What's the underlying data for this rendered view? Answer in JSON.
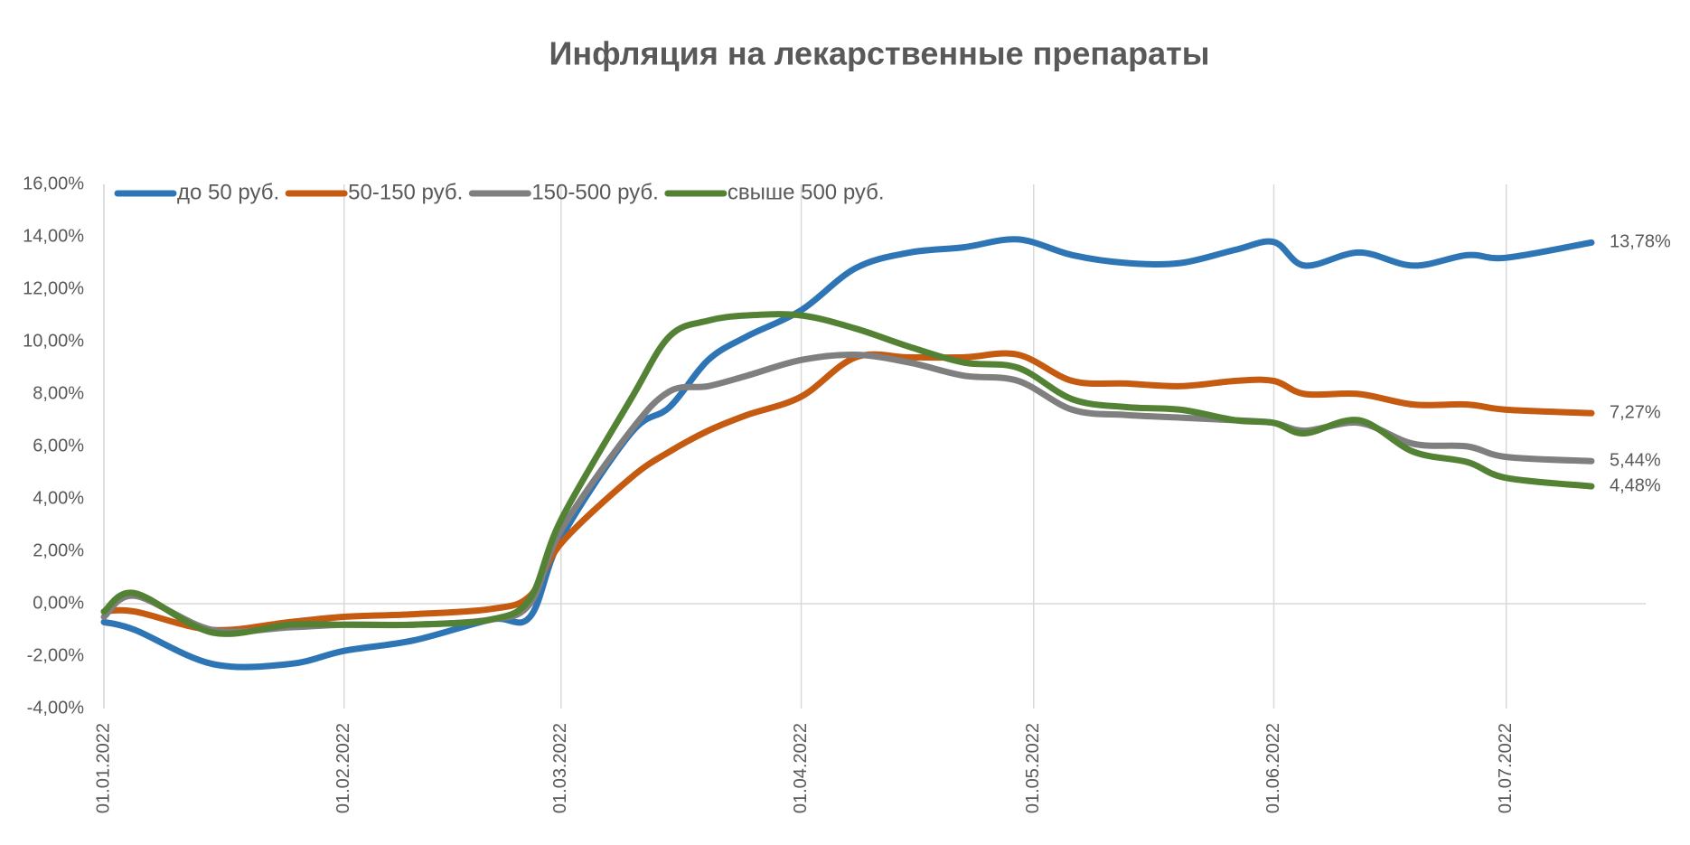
{
  "chart_data": {
    "type": "line",
    "title": "Инфляция на лекарственные препараты",
    "x": [
      "01.01.2022",
      "05.01.2022",
      "15.01.2022",
      "25.01.2022",
      "01.02.2022",
      "10.02.2022",
      "20.02.2022",
      "25.02.2022",
      "01.03.2022",
      "10.03.2022",
      "15.03.2022",
      "20.03.2022",
      "25.03.2022",
      "01.04.2022",
      "08.04.2022",
      "15.04.2022",
      "22.04.2022",
      "29.04.2022",
      "06.05.2022",
      "13.05.2022",
      "20.05.2022",
      "27.05.2022",
      "01.06.2022",
      "05.06.2022",
      "12.06.2022",
      "19.06.2022",
      "26.06.2022",
      "01.07.2022",
      "12.07.2022"
    ],
    "series": [
      {
        "name": "до 50 руб.",
        "color": "#2e75b6",
        "values": [
          -0.7,
          -1.0,
          -2.3,
          -2.3,
          -1.8,
          -1.4,
          -0.6,
          -0.5,
          2.5,
          6.5,
          7.5,
          9.3,
          10.2,
          11.2,
          12.8,
          13.4,
          13.6,
          13.9,
          13.3,
          13.0,
          13.0,
          13.5,
          13.8,
          12.9,
          13.4,
          12.9,
          13.3,
          13.2,
          13.78
        ],
        "value_labels": [
          null,
          null,
          null,
          null,
          null,
          null,
          null,
          null,
          null,
          null,
          null,
          null,
          null,
          null,
          null,
          null,
          null,
          null,
          null,
          null,
          null,
          null,
          null,
          null,
          null,
          null,
          null,
          null,
          "13,78%"
        ]
      },
      {
        "name": "50-150 руб.",
        "color": "#c55a11",
        "values": [
          -0.3,
          -0.3,
          -1.0,
          -0.7,
          -0.5,
          -0.4,
          -0.2,
          0.3,
          2.3,
          4.8,
          5.8,
          6.6,
          7.2,
          7.9,
          9.4,
          9.4,
          9.4,
          9.5,
          8.5,
          8.4,
          8.3,
          8.5,
          8.5,
          8.0,
          8.0,
          7.6,
          7.6,
          7.4,
          7.27
        ],
        "value_labels": [
          null,
          null,
          null,
          null,
          null,
          null,
          null,
          null,
          null,
          null,
          null,
          null,
          null,
          null,
          null,
          null,
          null,
          null,
          null,
          null,
          null,
          null,
          null,
          null,
          null,
          null,
          null,
          null,
          "7,27%"
        ]
      },
      {
        "name": "150-500 руб.",
        "color": "#7f7f7f",
        "values": [
          -0.5,
          0.3,
          -1.0,
          -0.9,
          -0.8,
          -0.8,
          -0.6,
          0.0,
          2.8,
          6.6,
          8.1,
          8.3,
          8.7,
          9.3,
          9.5,
          9.2,
          8.7,
          8.5,
          7.4,
          7.2,
          7.1,
          7.0,
          6.9,
          6.6,
          6.9,
          6.1,
          6.0,
          5.6,
          5.44
        ],
        "value_labels": [
          null,
          null,
          null,
          null,
          null,
          null,
          null,
          null,
          null,
          null,
          null,
          null,
          null,
          null,
          null,
          null,
          null,
          null,
          null,
          null,
          null,
          null,
          null,
          null,
          null,
          null,
          null,
          null,
          "5,44%"
        ]
      },
      {
        "name": "свыше 500 руб.",
        "color": "#548235",
        "values": [
          -0.3,
          0.4,
          -1.1,
          -0.8,
          -0.8,
          -0.8,
          -0.6,
          0.2,
          3.2,
          7.8,
          10.2,
          10.8,
          11.0,
          11.0,
          10.5,
          9.8,
          9.2,
          9.0,
          7.8,
          7.5,
          7.4,
          7.0,
          6.9,
          6.5,
          7.0,
          5.8,
          5.4,
          4.8,
          4.48
        ],
        "value_labels": [
          null,
          null,
          null,
          null,
          null,
          null,
          null,
          null,
          null,
          null,
          null,
          null,
          null,
          null,
          null,
          null,
          null,
          null,
          null,
          null,
          null,
          null,
          null,
          null,
          null,
          null,
          null,
          null,
          "4,48%"
        ]
      }
    ],
    "xlim": [
      "01.01.2022",
      "19.07.2022"
    ],
    "xticks": [
      "01.01.2022",
      "01.02.2022",
      "01.03.2022",
      "01.04.2022",
      "01.05.2022",
      "01.06.2022",
      "01.07.2022"
    ],
    "ylim": [
      -4,
      16
    ],
    "yticks": [
      {
        "value": -4,
        "label": "-4,00%"
      },
      {
        "value": -2,
        "label": "-2,00%"
      },
      {
        "value": 0,
        "label": "0,00%"
      },
      {
        "value": 2,
        "label": "2,00%"
      },
      {
        "value": 4,
        "label": "4,00%"
      },
      {
        "value": 6,
        "label": "6,00%"
      },
      {
        "value": 8,
        "label": "8,00%"
      },
      {
        "value": 10,
        "label": "10,00%"
      },
      {
        "value": 12,
        "label": "12,00%"
      },
      {
        "value": 14,
        "label": "14,00%"
      },
      {
        "value": 16,
        "label": "16,00%"
      }
    ],
    "grid": "x",
    "legend": "top-left"
  }
}
